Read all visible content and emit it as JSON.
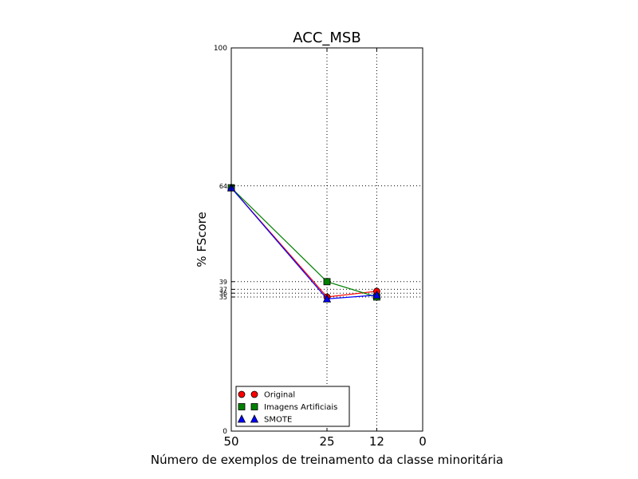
{
  "chart_data": {
    "type": "line",
    "title": "ACC_MSB",
    "xlabel": "Número de exemplos de treinamento da classe minoritária",
    "ylabel": "% FScore",
    "xlim": [
      50,
      0
    ],
    "ylim": [
      0,
      100
    ],
    "x_ticks": [
      50,
      25,
      12,
      0
    ],
    "y_ticks": [
      0,
      100
    ],
    "y_minor_ticks": [
      64,
      39,
      37,
      36,
      35
    ],
    "grid": "dotted at data points",
    "grid_x": [
      25,
      12
    ],
    "grid_y": [
      64,
      39,
      37,
      36,
      35
    ],
    "legend_position": "lower-left",
    "x": [
      50,
      25,
      12
    ],
    "series": [
      {
        "name": "Original",
        "values": [
          63.5,
          35,
          36.5
        ],
        "color": "#ff0000",
        "marker": "circle"
      },
      {
        "name": "Imagens Artificiais",
        "values": [
          63.5,
          39,
          35
        ],
        "color": "#008000",
        "marker": "square"
      },
      {
        "name": "SMOTE",
        "values": [
          63.5,
          34.5,
          35.5
        ],
        "color": "#0000ff",
        "marker": "triangle"
      }
    ]
  }
}
